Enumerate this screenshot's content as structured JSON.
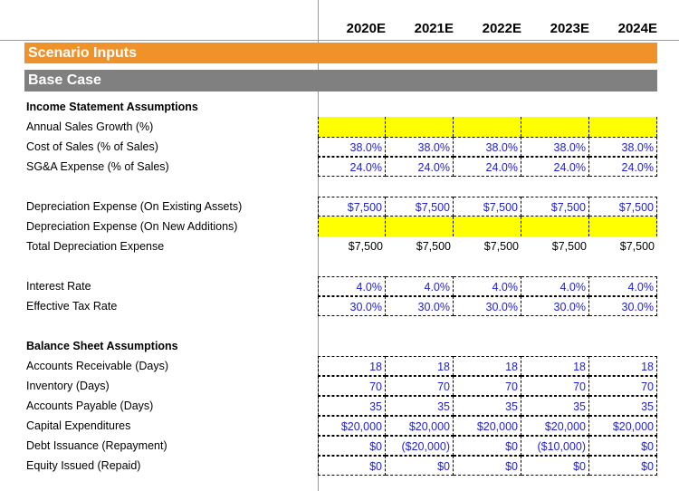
{
  "header": {
    "years": [
      "2020E",
      "2021E",
      "2022E",
      "2023E",
      "2024E"
    ]
  },
  "sections": {
    "scenario_title": "Scenario Inputs",
    "case_title": "Base Case",
    "income_title": "Income Statement Assumptions",
    "balance_title": "Balance Sheet Assumptions"
  },
  "rows": {
    "sales_growth": {
      "label": "Annual Sales Growth (%)",
      "values": [
        "",
        "",
        "",
        "",
        ""
      ]
    },
    "cost_of_sales": {
      "label": "Cost of Sales (% of Sales)",
      "values": [
        "38.0%",
        "38.0%",
        "38.0%",
        "38.0%",
        "38.0%"
      ]
    },
    "sga": {
      "label": "SG&A Expense (% of Sales)",
      "values": [
        "24.0%",
        "24.0%",
        "24.0%",
        "24.0%",
        "24.0%"
      ]
    },
    "dep_existing": {
      "label": "Depreciation Expense (On Existing Assets)",
      "values": [
        "$7,500",
        "$7,500",
        "$7,500",
        "$7,500",
        "$7,500"
      ]
    },
    "dep_new": {
      "label": "Depreciation Expense (On New Additions)",
      "values": [
        "",
        "",
        "",
        "",
        ""
      ]
    },
    "dep_total": {
      "label": "Total Depreciation Expense",
      "values": [
        "$7,500",
        "$7,500",
        "$7,500",
        "$7,500",
        "$7,500"
      ]
    },
    "interest_rate": {
      "label": "Interest Rate",
      "values": [
        "4.0%",
        "4.0%",
        "4.0%",
        "4.0%",
        "4.0%"
      ]
    },
    "tax_rate": {
      "label": "Effective Tax Rate",
      "values": [
        "30.0%",
        "30.0%",
        "30.0%",
        "30.0%",
        "30.0%"
      ]
    },
    "ar_days": {
      "label": "Accounts Receivable (Days)",
      "values": [
        "18",
        "18",
        "18",
        "18",
        "18"
      ]
    },
    "inventory_days": {
      "label": "Inventory (Days)",
      "values": [
        "70",
        "70",
        "70",
        "70",
        "70"
      ]
    },
    "ap_days": {
      "label": "Accounts Payable (Days)",
      "values": [
        "35",
        "35",
        "35",
        "35",
        "35"
      ]
    },
    "capex": {
      "label": "Capital Expenditures",
      "values": [
        "$20,000",
        "$20,000",
        "$20,000",
        "$20,000",
        "$20,000"
      ]
    },
    "debt": {
      "label": "Debt Issuance (Repayment)",
      "values": [
        "$0",
        "($20,000)",
        "$0",
        "($10,000)",
        "$0"
      ]
    },
    "equity": {
      "label": "Equity Issued (Repaid)",
      "values": [
        "$0",
        "$0",
        "$0",
        "$0",
        "$0"
      ]
    }
  },
  "colors": {
    "orange": "#F0922A",
    "gray": "#808080",
    "yellow": "#FFFF00",
    "input_blue": "#1F1FCF"
  }
}
